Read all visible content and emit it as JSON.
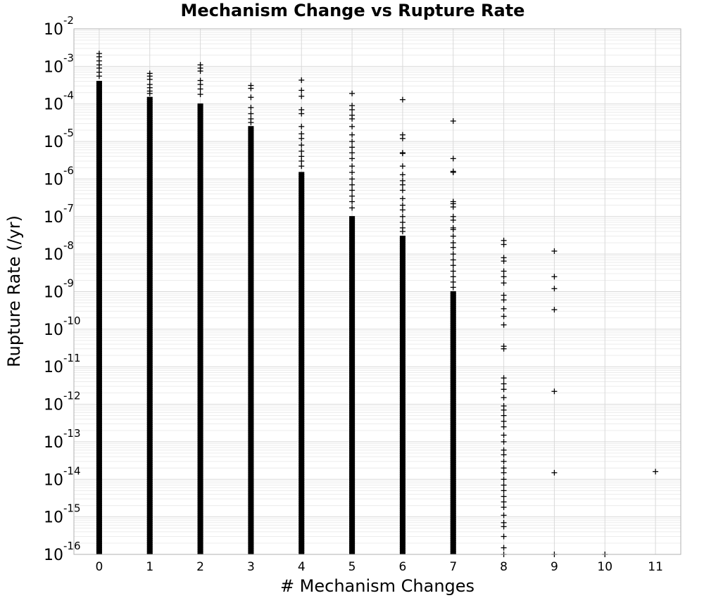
{
  "chart_data": {
    "type": "scatter",
    "title": "Mechanism Change vs Rupture Rate",
    "xlabel": "# Mechanism Changes",
    "ylabel": "Rupture Rate (/yr)",
    "xlim": [
      -0.5,
      11.5
    ],
    "ylim": [
      1e-16,
      0.01
    ],
    "yscale": "log",
    "grid": true,
    "marker": "+",
    "marker_color": "#000000",
    "x_ticks": [
      "0",
      "1",
      "2",
      "3",
      "4",
      "5",
      "6",
      "7",
      "8",
      "9",
      "10",
      "11"
    ],
    "y_ticks": [
      {
        "base": "10",
        "exp": "-2"
      },
      {
        "base": "10",
        "exp": "-3"
      },
      {
        "base": "10",
        "exp": "-4"
      },
      {
        "base": "10",
        "exp": "-5"
      },
      {
        "base": "10",
        "exp": "-6"
      },
      {
        "base": "10",
        "exp": "-7"
      },
      {
        "base": "10",
        "exp": "-8"
      },
      {
        "base": "10",
        "exp": "-9"
      },
      {
        "base": "10",
        "exp": "-10"
      },
      {
        "base": "10",
        "exp": "-11"
      },
      {
        "base": "10",
        "exp": "-12"
      },
      {
        "base": "10",
        "exp": "-13"
      },
      {
        "base": "10",
        "exp": "-14"
      },
      {
        "base": "10",
        "exp": "-15"
      },
      {
        "base": "10",
        "exp": "-16"
      }
    ],
    "columns": [
      {
        "x": 0,
        "dense_min": 1e-16,
        "dense_max": 0.0004,
        "points": [
          0.0022,
          0.0018,
          0.0014,
          0.0011,
          0.0009,
          0.0007,
          0.00055
        ]
      },
      {
        "x": 1,
        "dense_min": 1e-16,
        "dense_max": 0.00015,
        "points": [
          0.00065,
          0.00055,
          0.00045,
          0.00033,
          0.00027,
          0.00022,
          0.00019
        ]
      },
      {
        "x": 2,
        "dense_min": 1e-16,
        "dense_max": 0.0001,
        "points": [
          0.0011,
          0.0009,
          0.00075,
          0.00042,
          0.00033,
          0.00025,
          0.00018
        ]
      },
      {
        "x": 3,
        "dense_min": 1e-16,
        "dense_max": 2.5e-05,
        "points": [
          0.00031,
          0.00026,
          0.00015,
          8e-05,
          5.5e-05,
          4e-05,
          3.2e-05
        ]
      },
      {
        "x": 4,
        "dense_min": 1e-16,
        "dense_max": 1.5e-06,
        "points": [
          0.00043,
          0.00023,
          0.00016,
          7e-05,
          5.5e-05,
          2.5e-05,
          1.6e-05,
          1.2e-05,
          8e-06,
          5.5e-06,
          4e-06,
          3e-06,
          2.2e-06
        ]
      },
      {
        "x": 5,
        "dense_min": 1e-16,
        "dense_max": 1e-07,
        "points": [
          0.00019,
          9e-05,
          7e-05,
          5e-05,
          4e-05,
          2.5e-05,
          1.5e-05,
          1e-05,
          7e-06,
          5e-06,
          3.5e-06,
          2.2e-06,
          1.5e-06,
          1e-06,
          7e-07,
          5e-07,
          3.5e-07,
          2.5e-07,
          1.7e-07
        ]
      },
      {
        "x": 6,
        "dense_min": 1e-16,
        "dense_max": 3e-08,
        "points": [
          0.00013,
          1.5e-05,
          1.2e-05,
          5e-06,
          4.8e-06,
          2.2e-06,
          1.3e-06,
          9e-07,
          7e-07,
          5e-07,
          3e-07,
          2e-07,
          1.5e-07,
          1e-07,
          7e-08,
          5e-08,
          4e-08
        ]
      },
      {
        "x": 7,
        "dense_min": 1e-16,
        "dense_max": 1e-09,
        "points": [
          3.5e-05,
          3.5e-06,
          1.6e-06,
          1.5e-06,
          2.5e-07,
          2.2e-07,
          1.8e-07,
          1e-07,
          8e-08,
          5e-08,
          4.5e-08,
          3e-08,
          2e-08,
          1.5e-08,
          1e-08,
          7e-09,
          5e-09,
          3.5e-09,
          2.5e-09,
          1.8e-09,
          1.3e-09
        ]
      },
      {
        "x": 8,
        "dense_min": 1e-16,
        "dense_max": 1e-16,
        "points": [
          2.3e-08,
          1.8e-08,
          8e-09,
          6.5e-09,
          3.5e-09,
          2.5e-09,
          1.7e-09,
          8e-10,
          6e-10,
          3.5e-10,
          2.2e-10,
          1.3e-10,
          3.5e-11,
          3e-11,
          5e-12,
          3.5e-12,
          2.5e-12,
          1.5e-12,
          9e-13,
          7e-13,
          5e-13,
          3.5e-13,
          2.5e-13,
          1.5e-13,
          1e-13,
          6e-14,
          4.5e-14,
          3e-14,
          2e-14,
          1.5e-14,
          1e-14,
          7e-15,
          5e-15,
          3.5e-15,
          2.5e-15,
          1.8e-15,
          1.1e-15,
          7e-16,
          5.5e-16,
          3e-16,
          1.5e-16,
          1e-16
        ]
      },
      {
        "x": 9,
        "dense_min": 1e-16,
        "dense_max": 1e-16,
        "points": [
          1.2e-08,
          2.5e-09,
          1.2e-09,
          3.3e-10,
          2.2e-12,
          1.5e-14,
          1e-16
        ]
      },
      {
        "x": 10,
        "dense_min": 1e-16,
        "dense_max": 1e-16,
        "points": [
          1e-16
        ]
      },
      {
        "x": 11,
        "dense_min": 1e-16,
        "dense_max": 1e-16,
        "points": [
          1.6e-14
        ]
      }
    ]
  }
}
